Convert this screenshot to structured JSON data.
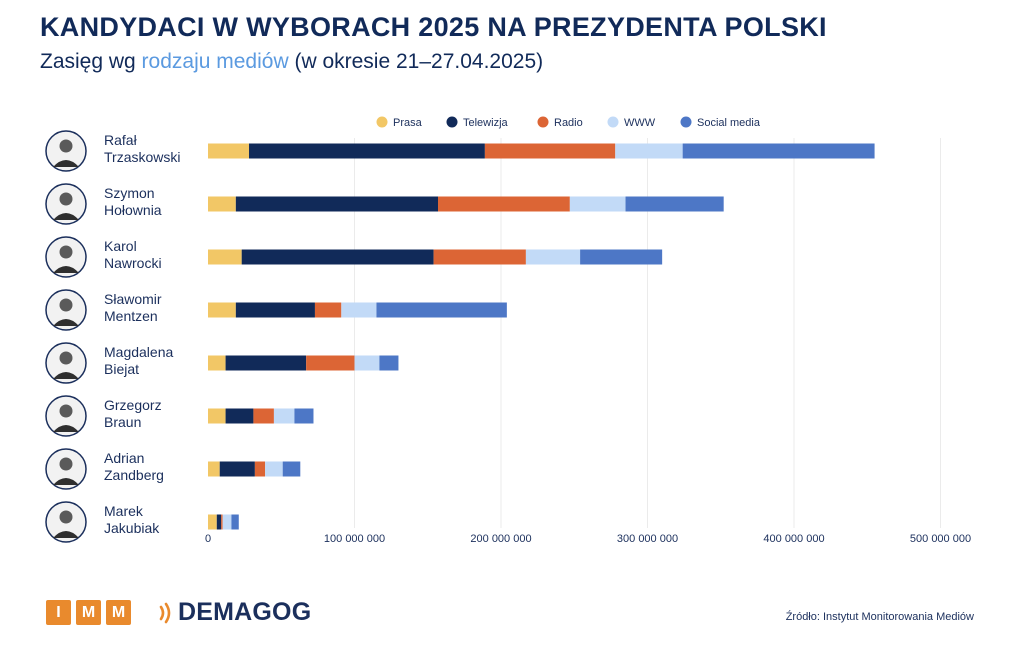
{
  "header": {
    "title": "KANDYDACI W WYBORACH 2025 NA PREZYDENTA POLSKI",
    "subtitle_pre": "Zasięg wg ",
    "subtitle_highlight": "rodzaju mediów",
    "subtitle_post": " (w okresie 21–27.04.2025)"
  },
  "chart_data": {
    "type": "bar",
    "orientation": "horizontal",
    "stacked": true,
    "categories": [
      [
        "Rafał",
        "Trzaskowski"
      ],
      [
        "Szymon",
        "Hołownia"
      ],
      [
        "Karol",
        "Nawrocki"
      ],
      [
        "Sławomir",
        "Mentzen"
      ],
      [
        "Magdalena",
        "Biejat"
      ],
      [
        "Grzegorz",
        "Braun"
      ],
      [
        "Adrian",
        "Zandberg"
      ],
      [
        "Marek",
        "Jakubiak"
      ]
    ],
    "series": [
      {
        "name": "Prasa",
        "color": "#f2c766",
        "values": [
          28000000,
          19000000,
          23000000,
          19000000,
          12000000,
          12000000,
          8000000,
          6000000
        ]
      },
      {
        "name": "Telewizja",
        "color": "#112a59",
        "values": [
          161000000,
          138000000,
          131000000,
          54000000,
          55000000,
          19000000,
          24000000,
          3000000
        ]
      },
      {
        "name": "Radio",
        "color": "#dc6535",
        "values": [
          89000000,
          90000000,
          63000000,
          18000000,
          33000000,
          14000000,
          7000000,
          1000000
        ]
      },
      {
        "name": "WWW",
        "color": "#c2daf7",
        "values": [
          46000000,
          38000000,
          37000000,
          24000000,
          17000000,
          14000000,
          12000000,
          6000000
        ]
      },
      {
        "name": "Social media",
        "color": "#4d77c6",
        "values": [
          131000000,
          67000000,
          56000000,
          89000000,
          13000000,
          13000000,
          12000000,
          5000000
        ]
      }
    ],
    "xlim": [
      0,
      500000000
    ],
    "x_ticks": [
      0,
      100000000,
      200000000,
      300000000,
      400000000,
      500000000
    ],
    "x_tick_labels": [
      "0",
      "100 000 000",
      "200 000 000",
      "300 000 000",
      "400 000 000",
      "500 000 000"
    ],
    "grid": "vertical",
    "legend_position": "top"
  },
  "footer": {
    "imm_letters": [
      "I",
      "M",
      "M"
    ],
    "demagog_label": "DEMAGOG",
    "source": "Źródło: Instytut Monitorowania Mediów",
    "brand_orange": "#e98a2d"
  }
}
